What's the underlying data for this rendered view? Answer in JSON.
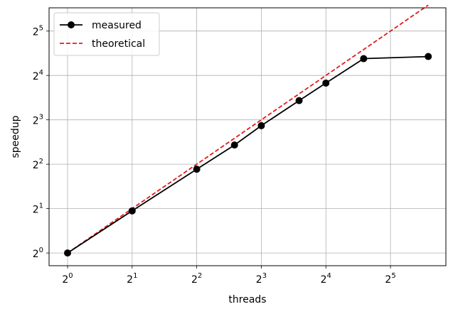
{
  "chart_data": {
    "type": "line",
    "title": "",
    "xlabel": "threads",
    "ylabel": "speedup",
    "x_scale": "log2",
    "y_scale": "log2",
    "xlim": [
      0.82,
      58
    ],
    "ylim": [
      0.82,
      46
    ],
    "grid": true,
    "legend_position": "top-left",
    "x_ticks": [
      {
        "value": 1,
        "base": "2",
        "exp": "0"
      },
      {
        "value": 2,
        "base": "2",
        "exp": "1"
      },
      {
        "value": 4,
        "base": "2",
        "exp": "2"
      },
      {
        "value": 8,
        "base": "2",
        "exp": "3"
      },
      {
        "value": 16,
        "base": "2",
        "exp": "4"
      },
      {
        "value": 32,
        "base": "2",
        "exp": "5"
      }
    ],
    "y_ticks": [
      {
        "value": 1,
        "base": "2",
        "exp": "0"
      },
      {
        "value": 2,
        "base": "2",
        "exp": "1"
      },
      {
        "value": 4,
        "base": "2",
        "exp": "2"
      },
      {
        "value": 8,
        "base": "2",
        "exp": "3"
      },
      {
        "value": 16,
        "base": "2",
        "exp": "4"
      },
      {
        "value": 32,
        "base": "2",
        "exp": "5"
      }
    ],
    "series": [
      {
        "name": "measured",
        "color": "#000000",
        "style": "solid-marker",
        "x": [
          1,
          2,
          4,
          6,
          8,
          12,
          16,
          24,
          48
        ],
        "y": [
          1,
          1.93,
          3.7,
          5.4,
          7.3,
          10.8,
          14.2,
          20.8,
          21.5
        ]
      },
      {
        "name": "theoretical",
        "color": "#e41a1c",
        "style": "dashed",
        "x": [
          1,
          48
        ],
        "y": [
          1,
          48
        ]
      }
    ]
  }
}
